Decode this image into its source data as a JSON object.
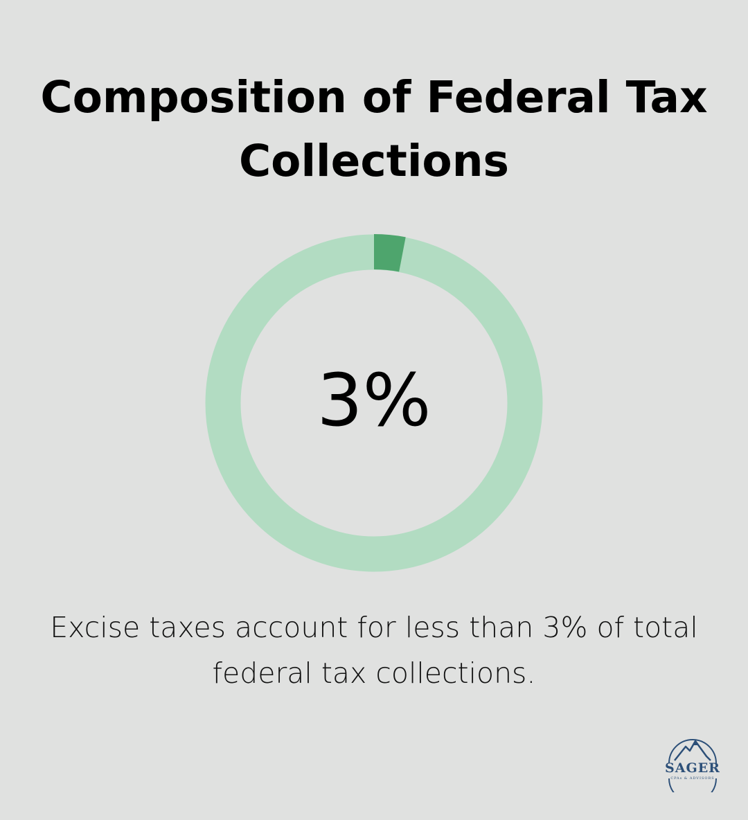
{
  "chart_data": {
    "type": "pie",
    "title_lines": [
      "Composition of Federal Tax",
      "Collections"
    ],
    "center_label": "3%",
    "value_percent": 3,
    "caption_lines": [
      "Excise taxes account for less than 3% of total",
      "federal tax collections."
    ],
    "colors": {
      "highlight": "#4ea56d",
      "track": "#b2dcc2"
    }
  },
  "logo": {
    "word": "SAGER",
    "sub": "CPAs & ADVISORS",
    "color": "#2c4f78"
  },
  "colors": {
    "background": "#e0e1e0"
  }
}
